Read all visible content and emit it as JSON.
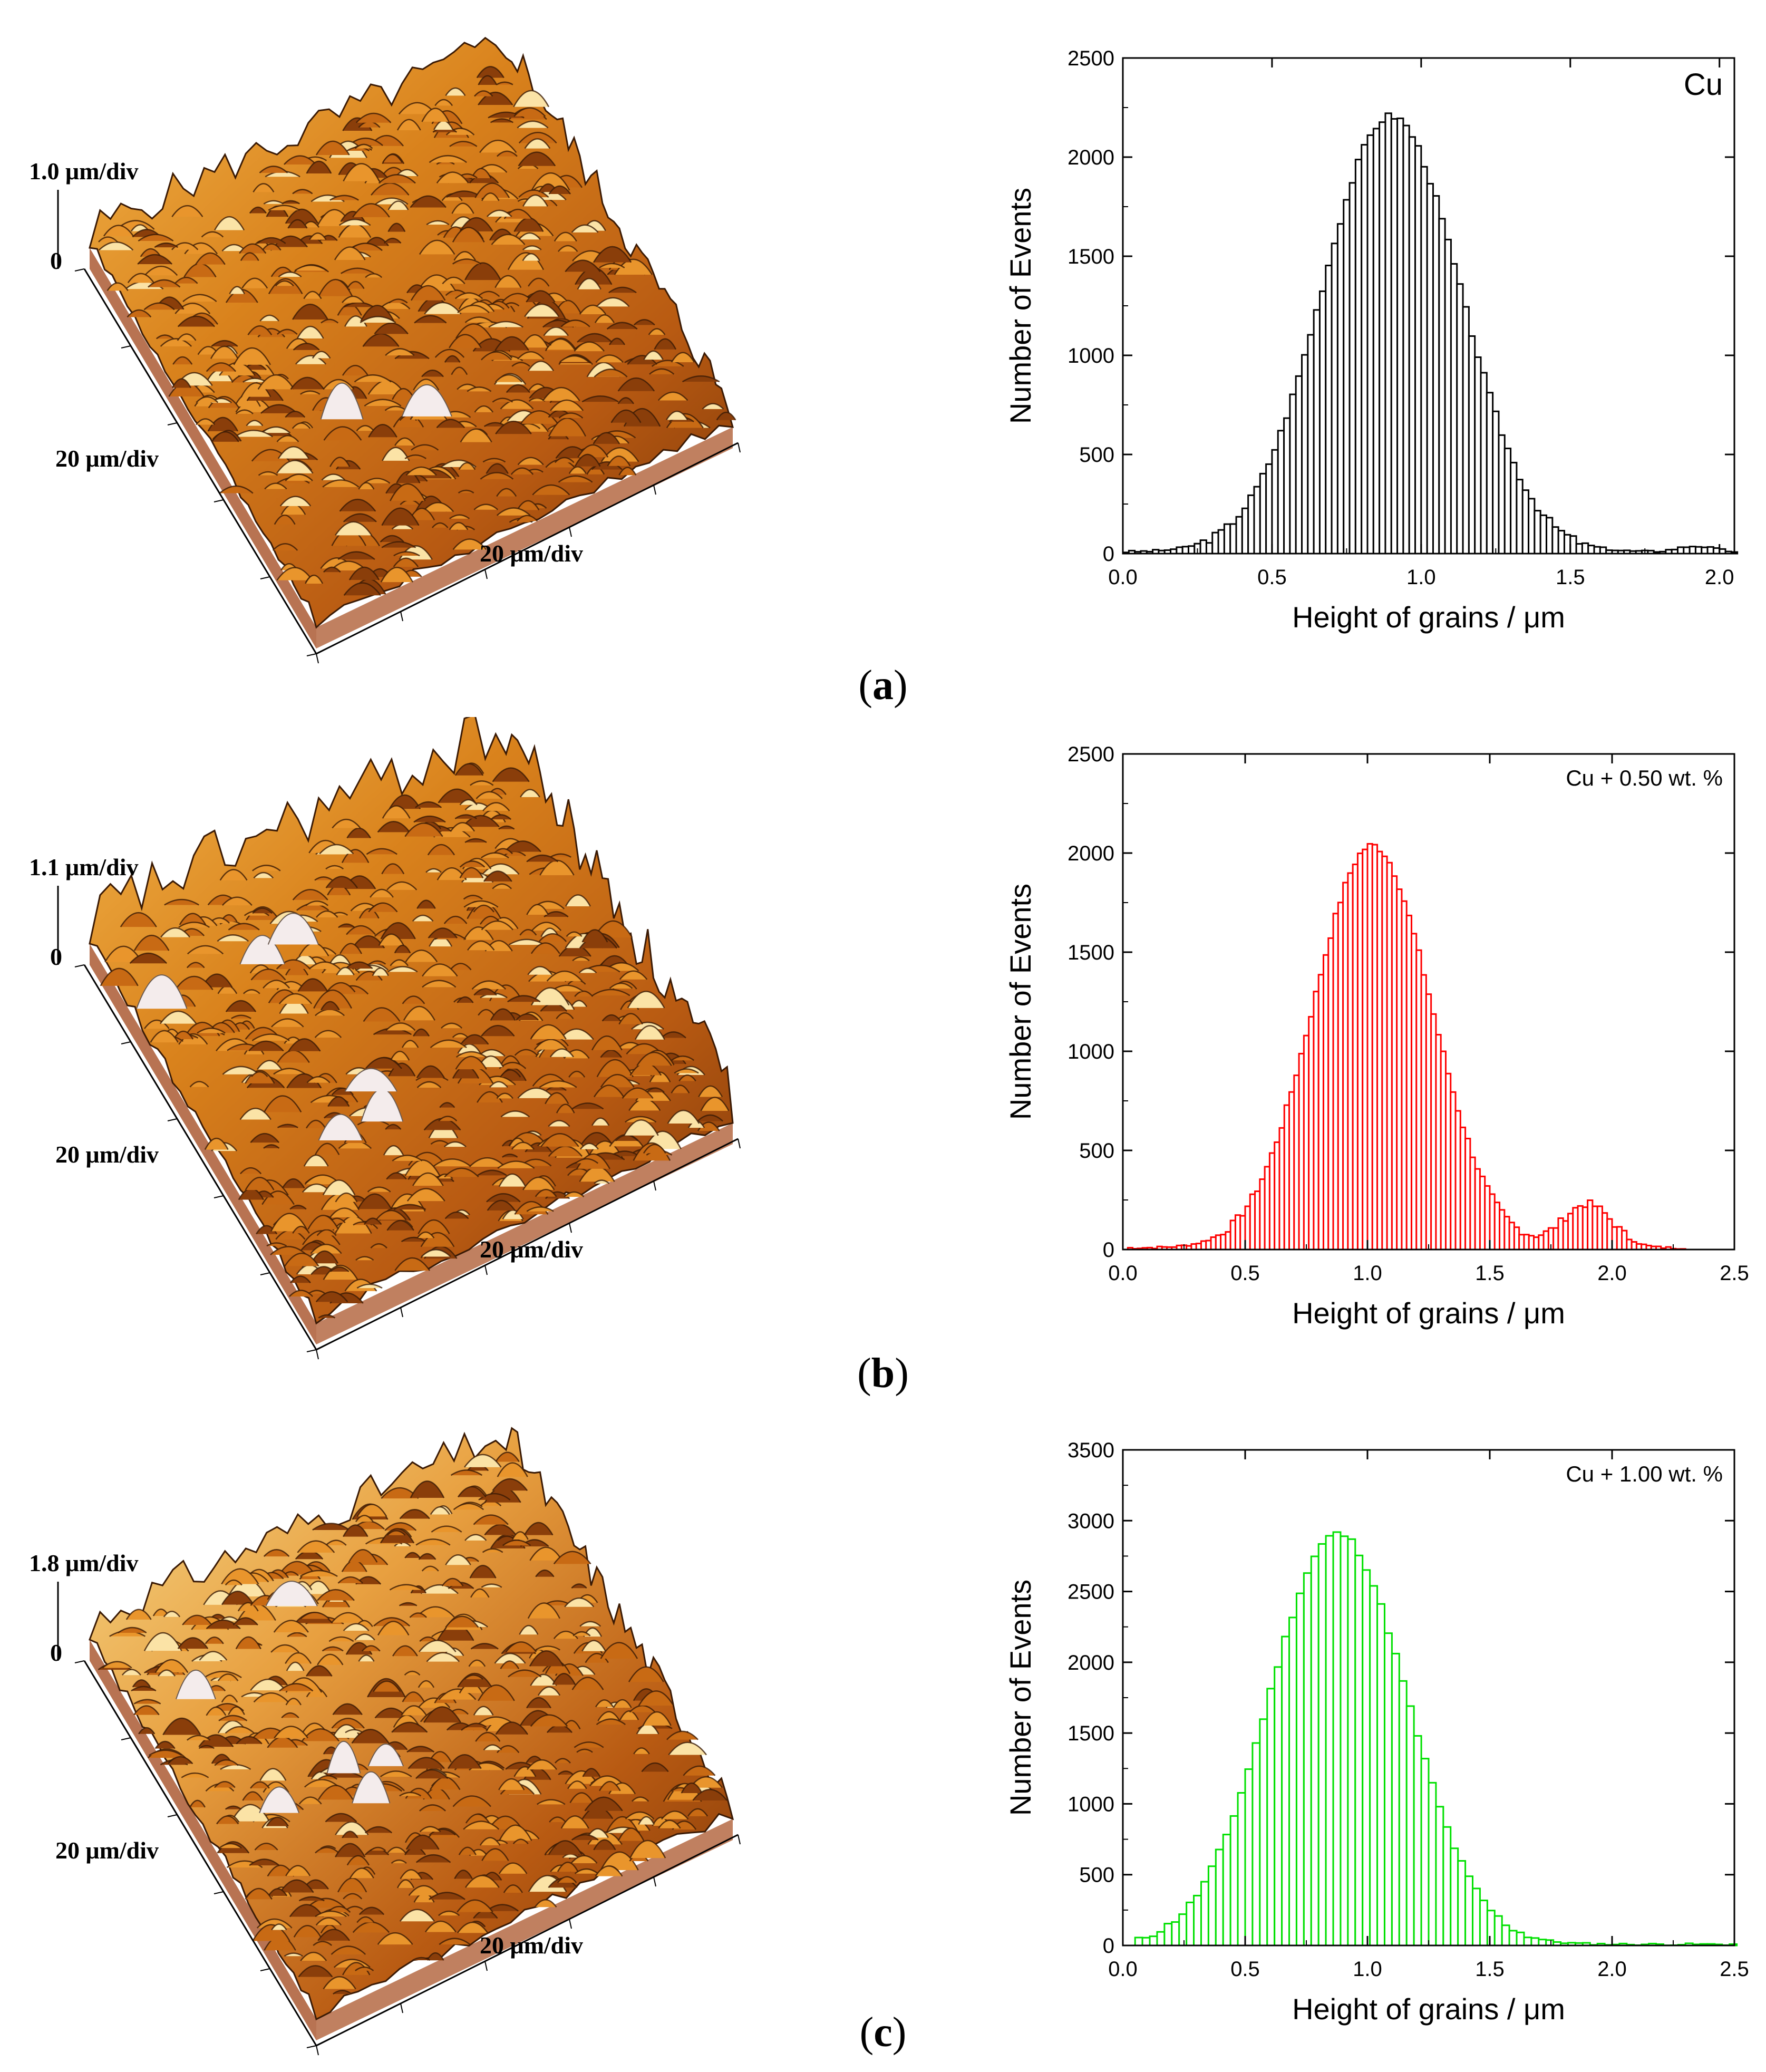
{
  "panels": [
    {
      "id": "a",
      "caption": "a",
      "afm": {
        "z_scale_label": "1.0 μm/div",
        "zero_label": "0",
        "y_scale_label": "20 μm/div",
        "x_scale_label": "20 μm/div",
        "style": "uniform"
      },
      "bar_color": "#000000"
    },
    {
      "id": "b",
      "caption": "b",
      "afm": {
        "z_scale_label": "1.1 μm/div",
        "zero_label": "0",
        "y_scale_label": "20 μm/div",
        "x_scale_label": "20 μm/div",
        "style": "rough"
      },
      "bar_color": "#ff0000"
    },
    {
      "id": "c",
      "caption": "c",
      "afm": {
        "z_scale_label": "1.8 μm/div",
        "zero_label": "0",
        "y_scale_label": "20 μm/div",
        "x_scale_label": "20 μm/div",
        "style": "light"
      },
      "bar_color": "#00e000"
    }
  ],
  "chart_data": [
    {
      "type": "bar",
      "title": "Cu",
      "xlabel": "Height of grains / μm",
      "ylabel": "Number of Events",
      "xlim": [
        0,
        2.05
      ],
      "ylim": [
        0,
        2500
      ],
      "xticks": [
        "0.0",
        "0.5",
        "1.0",
        "1.5",
        "2.0"
      ],
      "xtick_values": [
        0,
        0.5,
        1.0,
        1.5,
        2.0
      ],
      "yticks": [
        "0",
        "500",
        "1000",
        "1500",
        "2000",
        "2500"
      ],
      "ytick_values": [
        0,
        500,
        1000,
        1500,
        2000,
        2500
      ],
      "bin_width": 0.02,
      "distribution": {
        "peak_center": 0.9,
        "peak_height": 2200,
        "sigma": 0.23,
        "second_center": 1.92,
        "second_height": 30,
        "second_sigma": 0.06,
        "noise_seed": 3,
        "noise": 40
      },
      "bins_x_start": 0.0,
      "bins_x_end": 2.05,
      "bar_color": "#000000"
    },
    {
      "type": "bar",
      "title": "Cu + 0.50 wt. %",
      "xlabel": "Height of grains / μm",
      "ylabel": "Number of Events",
      "xlim": [
        0,
        2.5
      ],
      "ylim": [
        0,
        2500
      ],
      "xticks": [
        "0.0",
        "0.5",
        "1.0",
        "1.5",
        "2.0",
        "2.5"
      ],
      "xtick_values": [
        0,
        0.5,
        1.0,
        1.5,
        2.0,
        2.5
      ],
      "yticks": [
        "0",
        "500",
        "1000",
        "1500",
        "2000",
        "2500"
      ],
      "ytick_values": [
        0,
        500,
        1000,
        1500,
        2000,
        2500
      ],
      "bin_width": 0.02,
      "distribution": {
        "peak_center": 1.02,
        "peak_height": 2030,
        "sigma": 0.24,
        "second_center": 1.9,
        "second_height": 220,
        "second_sigma": 0.1,
        "noise_seed": 7,
        "noise": 40
      },
      "bins_x_start": 0.02,
      "bins_x_end": 2.3,
      "bar_color": "#ff0000"
    },
    {
      "type": "bar",
      "title": "Cu + 1.00 wt. %",
      "xlabel": "Height of grains / μm",
      "ylabel": "Number of Events",
      "xlim": [
        0,
        2.5
      ],
      "ylim": [
        0,
        3500
      ],
      "xticks": [
        "0.0",
        "0.5",
        "1.0",
        "1.5",
        "2.0",
        "2.5"
      ],
      "xtick_values": [
        0,
        0.5,
        1.0,
        1.5,
        2.0,
        2.5
      ],
      "yticks": [
        "0",
        "500",
        "1000",
        "1500",
        "2000",
        "2500",
        "3000",
        "3500"
      ],
      "ytick_values": [
        0,
        500,
        1000,
        1500,
        2000,
        2500,
        3000,
        3500
      ],
      "bin_width": 0.03,
      "distribution": {
        "peak_center": 0.88,
        "peak_height": 2900,
        "sigma": 0.28,
        "second_center": 1.5,
        "second_height": 0,
        "second_sigma": 0.1,
        "noise_seed": 11,
        "noise": 50
      },
      "bins_x_start": 0.05,
      "bins_x_end": 2.5,
      "bar_color": "#00e000"
    }
  ]
}
